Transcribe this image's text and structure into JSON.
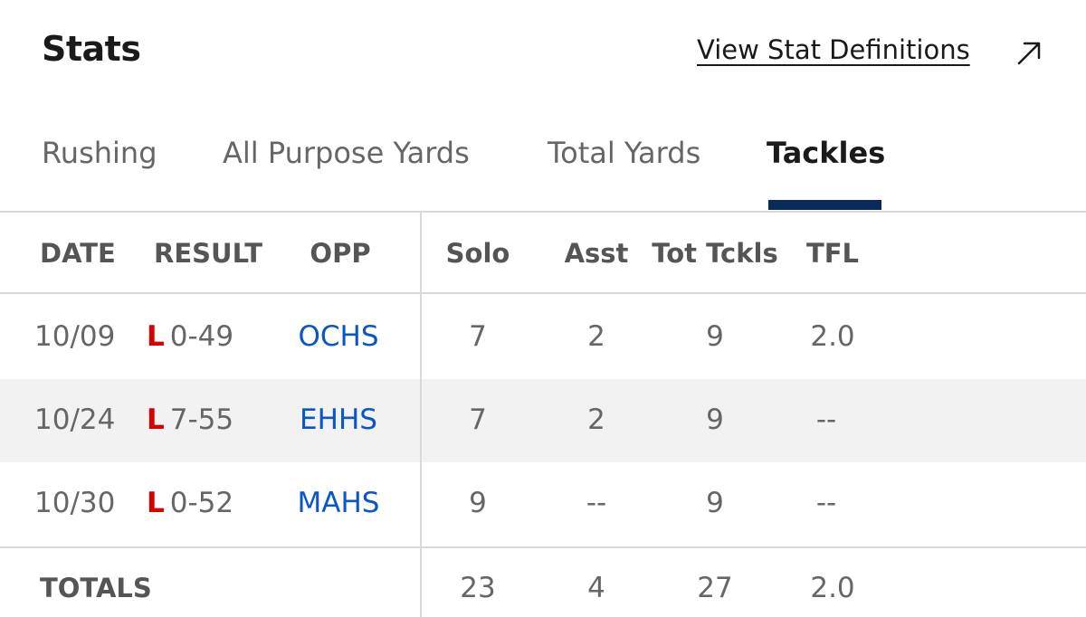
{
  "header": {
    "title": "Stats",
    "definitions_link": "View Stat Definitions"
  },
  "tabs": [
    {
      "label": "Rushing",
      "active": false
    },
    {
      "label": "All Purpose Yards",
      "active": false
    },
    {
      "label": "Total Yards",
      "active": false
    },
    {
      "label": "Tackles",
      "active": true
    }
  ],
  "table": {
    "columns": [
      "DATE",
      "RESULT",
      "OPP",
      "Solo",
      "Asst",
      "Tot Tckls",
      "TFL"
    ],
    "rows": [
      {
        "date": "10/09",
        "result_letter": "L",
        "result_score": "0-49",
        "opp": "OCHS",
        "solo": "7",
        "asst": "2",
        "tot": "9",
        "tfl": "2.0"
      },
      {
        "date": "10/24",
        "result_letter": "L",
        "result_score": "7-55",
        "opp": "EHHS",
        "solo": "7",
        "asst": "2",
        "tot": "9",
        "tfl": "--"
      },
      {
        "date": "10/30",
        "result_letter": "L",
        "result_score": "0-52",
        "opp": "MAHS",
        "solo": "9",
        "asst": "--",
        "tot": "9",
        "tfl": "--"
      }
    ],
    "totals": {
      "label": "TOTALS",
      "solo": "23",
      "asst": "4",
      "tot": "27",
      "tfl": "2.0"
    }
  },
  "colors": {
    "loss": "#d50000",
    "link": "#0a55c8",
    "tab_underline": "#0b2a5c"
  }
}
